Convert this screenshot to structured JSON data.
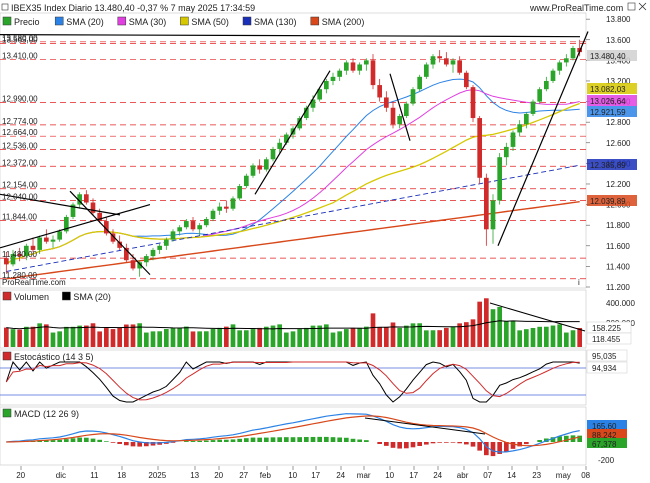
{
  "header": {
    "title": "IBEX35 Index Diario 13.480,40 -0,37 % 7 may 2025 17:34:59",
    "site": "www.ProRealTime.com",
    "watermark": "ProRealTime.com"
  },
  "colors": {
    "up_candle": "#2aa52a",
    "down_candle": "#d02a2a",
    "sma20": "#2b82e6",
    "sma30": "#e040e0",
    "sma50": "#d6c800",
    "sma130": "#1a2fb8",
    "sma200": "#d8481a",
    "dashed_level": "#e02020",
    "trendline": "#000000"
  },
  "price_panel": {
    "legend": [
      {
        "label": "Precio",
        "color": "#2aa52a"
      },
      {
        "label": "SMA (20)",
        "color": "#2b82e6"
      },
      {
        "label": "SMA (30)",
        "color": "#e040e0"
      },
      {
        "label": "SMA (50)",
        "color": "#d6c800"
      },
      {
        "label": "SMA (130)",
        "color": "#1a2fb8"
      },
      {
        "label": "SMA (200)",
        "color": "#d8481a"
      }
    ],
    "right_ticks": [
      "13.800",
      "13.600",
      "13.400",
      "13.200",
      "13.000",
      "12.800",
      "12.600",
      "12.400",
      "12.200",
      "12.000",
      "11.800",
      "11.600",
      "11.400",
      "11.200"
    ],
    "left_levels": [
      "13.580,00",
      "13.565,00",
      "13.410,00",
      "12.990,00",
      "12.774,00",
      "12.664,00",
      "12.536,00",
      "12.372,00",
      "12.154,00",
      "12.040,00",
      "11.844,00",
      "11.480,00",
      "11.280,00"
    ],
    "value_tags": [
      {
        "label": "13.480,40",
        "color": "#d0d0d0"
      },
      {
        "label": "13.082,03",
        "color": "#d6c800"
      },
      {
        "label": "13.026,64",
        "color": "#e040e0"
      },
      {
        "label": "12.921,59",
        "color": "#2b82e6"
      },
      {
        "label": "12.385,89",
        "color": "#1a2fb8"
      },
      {
        "label": "12.039,89",
        "color": "#d8481a"
      }
    ]
  },
  "volume_panel": {
    "legend": [
      {
        "label": "Volumen",
        "color": "#d02a2a"
      },
      {
        "label": "SMA (20)",
        "color": "#000000"
      }
    ],
    "right_ticks": [
      "400.000",
      "200.000"
    ],
    "value_tags": [
      {
        "label": "158.225",
        "color": "#ffffff"
      },
      {
        "label": "118.455",
        "color": "#ffffff"
      }
    ]
  },
  "stoch_panel": {
    "legend": [
      {
        "label": "Estocástico (14 3 5)",
        "color": "#d02a2a"
      }
    ],
    "value_tags": [
      {
        "label": "95,035",
        "color": "#ffffff"
      },
      {
        "label": "94,934",
        "color": "#ffffff"
      }
    ]
  },
  "macd_panel": {
    "legend": [
      {
        "label": "MACD (12 26 9)",
        "color": "#2aa52a"
      }
    ],
    "right_ticks": [
      "-200"
    ],
    "value_tags": [
      {
        "label": "165,60",
        "color": "#2b82e6"
      },
      {
        "label": "88,242",
        "color": "#d8481a"
      },
      {
        "label": "67,378",
        "color": "#2aa52a"
      }
    ]
  },
  "x_axis": {
    "labels": [
      "20",
      "dic",
      "11",
      "18",
      "2025",
      "13",
      "20",
      "27",
      "feb",
      "10",
      "17",
      "24",
      "mar",
      "10",
      "17",
      "24",
      "abr",
      "07",
      "14",
      "23",
      "may",
      "08"
    ]
  },
  "chart_data": {
    "type": "candlestick",
    "title": "IBEX35 Index Diario",
    "ylim": [
      11200,
      13850
    ],
    "candles": [
      [
        11480,
        11540,
        11330,
        11420
      ],
      [
        11420,
        11560,
        11400,
        11520
      ],
      [
        11520,
        11580,
        11450,
        11500
      ],
      [
        11500,
        11620,
        11460,
        11600
      ],
      [
        11600,
        11680,
        11540,
        11560
      ],
      [
        11560,
        11700,
        11520,
        11680
      ],
      [
        11680,
        11760,
        11620,
        11640
      ],
      [
        11640,
        11700,
        11580,
        11660
      ],
      [
        11660,
        11760,
        11640,
        11740
      ],
      [
        11740,
        11900,
        11720,
        11880
      ],
      [
        11880,
        12020,
        11860,
        12000
      ],
      [
        12000,
        12120,
        11960,
        12100
      ],
      [
        12100,
        12140,
        12000,
        12020
      ],
      [
        12020,
        12060,
        11900,
        11920
      ],
      [
        11920,
        11960,
        11820,
        11840
      ],
      [
        11840,
        11880,
        11700,
        11720
      ],
      [
        11720,
        11760,
        11620,
        11640
      ],
      [
        11640,
        11700,
        11560,
        11580
      ],
      [
        11580,
        11620,
        11440,
        11460
      ],
      [
        11460,
        11520,
        11360,
        11380
      ],
      [
        11380,
        11460,
        11300,
        11440
      ],
      [
        11440,
        11520,
        11400,
        11500
      ],
      [
        11500,
        11580,
        11460,
        11560
      ],
      [
        11560,
        11620,
        11520,
        11600
      ],
      [
        11600,
        11680,
        11560,
        11660
      ],
      [
        11660,
        11760,
        11640,
        11740
      ],
      [
        11740,
        11800,
        11700,
        11780
      ],
      [
        11780,
        11860,
        11760,
        11840
      ],
      [
        11840,
        11880,
        11740,
        11760
      ],
      [
        11760,
        11820,
        11700,
        11800
      ],
      [
        11800,
        11880,
        11780,
        11860
      ],
      [
        11860,
        11960,
        11840,
        11940
      ],
      [
        11940,
        12020,
        11900,
        11980
      ],
      [
        11980,
        12040,
        11920,
        11960
      ],
      [
        11960,
        12080,
        11940,
        12060
      ],
      [
        12060,
        12200,
        12040,
        12180
      ],
      [
        12180,
        12300,
        12160,
        12280
      ],
      [
        12280,
        12400,
        12260,
        12380
      ],
      [
        12380,
        12440,
        12300,
        12340
      ],
      [
        12340,
        12460,
        12320,
        12440
      ],
      [
        12440,
        12560,
        12420,
        12540
      ],
      [
        12540,
        12640,
        12500,
        12600
      ],
      [
        12600,
        12700,
        12580,
        12680
      ],
      [
        12680,
        12760,
        12640,
        12740
      ],
      [
        12740,
        12860,
        12720,
        12840
      ],
      [
        12840,
        12960,
        12820,
        12940
      ],
      [
        12940,
        13060,
        12900,
        13020
      ],
      [
        13020,
        13140,
        13000,
        13120
      ],
      [
        13120,
        13220,
        13080,
        13200
      ],
      [
        13200,
        13280,
        13160,
        13240
      ],
      [
        13240,
        13320,
        13200,
        13300
      ],
      [
        13300,
        13400,
        13260,
        13380
      ],
      [
        13380,
        13420,
        13280,
        13300
      ],
      [
        13300,
        13380,
        13260,
        13360
      ],
      [
        13360,
        13420,
        13300,
        13400
      ],
      [
        13400,
        13460,
        13120,
        13160
      ],
      [
        13160,
        13220,
        13000,
        13040
      ],
      [
        13040,
        13100,
        12900,
        12940
      ],
      [
        12940,
        13000,
        12740,
        12780
      ],
      [
        12780,
        12880,
        12740,
        12860
      ],
      [
        12860,
        13000,
        12840,
        12980
      ],
      [
        12980,
        13140,
        12960,
        13120
      ],
      [
        13120,
        13260,
        13100,
        13240
      ],
      [
        13240,
        13380,
        13220,
        13360
      ],
      [
        13360,
        13460,
        13320,
        13440
      ],
      [
        13440,
        13500,
        13380,
        13420
      ],
      [
        13420,
        13480,
        13340,
        13360
      ],
      [
        13360,
        13420,
        13280,
        13400
      ],
      [
        13400,
        13440,
        13260,
        13280
      ],
      [
        13280,
        13300,
        13120,
        13140
      ],
      [
        13140,
        13160,
        12800,
        12840
      ],
      [
        12840,
        12860,
        12200,
        12260
      ],
      [
        12260,
        12300,
        11600,
        11760
      ],
      [
        11760,
        12100,
        11620,
        12040
      ],
      [
        12040,
        12500,
        12000,
        12460
      ],
      [
        12460,
        12600,
        12380,
        12560
      ],
      [
        12560,
        12720,
        12520,
        12700
      ],
      [
        12700,
        12820,
        12660,
        12780
      ],
      [
        12780,
        12900,
        12740,
        12880
      ],
      [
        12880,
        13020,
        12860,
        13000
      ],
      [
        13000,
        13140,
        12980,
        13120
      ],
      [
        13120,
        13240,
        13100,
        13200
      ],
      [
        13200,
        13320,
        13180,
        13300
      ],
      [
        13300,
        13400,
        13260,
        13380
      ],
      [
        13380,
        13460,
        13340,
        13420
      ],
      [
        13420,
        13540,
        13400,
        13520
      ],
      [
        13520,
        13600,
        13440,
        13480
      ]
    ]
  }
}
